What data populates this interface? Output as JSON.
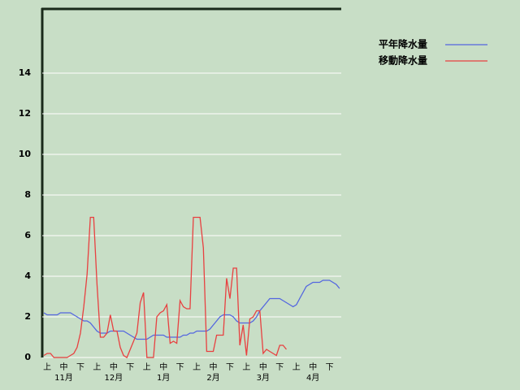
{
  "chart_data": {
    "type": "line",
    "categories": [
      null,
      "上",
      null,
      null,
      null,
      null,
      "中",
      null,
      null,
      null,
      null,
      "下",
      null,
      null,
      null,
      null,
      "上",
      null,
      null,
      null,
      null,
      "中",
      null,
      null,
      null,
      null,
      "下",
      null,
      null,
      null,
      null,
      "上",
      null,
      null,
      null,
      null,
      "中",
      null,
      null,
      null,
      null,
      "下",
      null,
      null,
      null,
      null,
      "上",
      null,
      null,
      null,
      null,
      "中",
      null,
      null,
      null,
      null,
      "下",
      null,
      null,
      null,
      null,
      "上",
      null,
      null,
      null,
      null,
      "中",
      null,
      null,
      null,
      null,
      "下",
      null,
      null,
      null,
      null,
      "上",
      null,
      null,
      null,
      null,
      "中",
      null,
      null,
      null,
      null,
      "下",
      null,
      null,
      null
    ],
    "months": [
      "11月",
      "12月",
      "1月",
      "2月",
      "3月",
      "4月"
    ],
    "series": [
      {
        "name": "平年降水量",
        "color": "#5366e0",
        "values": [
          2.2,
          2.1,
          2.1,
          2.1,
          2.1,
          2.2,
          2.2,
          2.2,
          2.2,
          2.1,
          2.0,
          1.9,
          1.8,
          1.8,
          1.7,
          1.5,
          1.3,
          1.2,
          1.2,
          1.2,
          1.3,
          1.3,
          1.3,
          1.3,
          1.3,
          1.2,
          1.1,
          1.0,
          0.9,
          0.9,
          0.9,
          0.9,
          1.0,
          1.1,
          1.1,
          1.1,
          1.1,
          1.0,
          1.0,
          1.0,
          1.0,
          1.0,
          1.1,
          1.1,
          1.2,
          1.2,
          1.3,
          1.3,
          1.3,
          1.3,
          1.4,
          1.6,
          1.8,
          2.0,
          2.1,
          2.1,
          2.1,
          2.0,
          1.8,
          1.7,
          1.7,
          1.7,
          1.7,
          1.8,
          2.0,
          2.3,
          2.5,
          2.7,
          2.9,
          2.9,
          2.9,
          2.9,
          2.8,
          2.7,
          2.6,
          2.5,
          2.6,
          2.9,
          3.2,
          3.5,
          3.6,
          3.7,
          3.7,
          3.7,
          3.8,
          3.8,
          3.8,
          3.7,
          3.6,
          3.4
        ]
      },
      {
        "name": "移動降水量",
        "color": "#e84040",
        "values": [
          0.1,
          0.2,
          0.2,
          0,
          0,
          0,
          0,
          0,
          0.1,
          0.2,
          0.5,
          1.2,
          2.5,
          4.1,
          6.9,
          6.9,
          3.6,
          1.0,
          1.0,
          1.2,
          2.1,
          1.3,
          1.3,
          0.5,
          0.1,
          0.0,
          0.4,
          0.8,
          1.2,
          2.7,
          3.2,
          0,
          0,
          0,
          2.0,
          2.2,
          2.3,
          2.6,
          0.7,
          0.8,
          0.7,
          2.8,
          2.5,
          2.4,
          2.4,
          6.9,
          6.9,
          6.9,
          5.4,
          0.3,
          0.3,
          0.3,
          1.1,
          1.1,
          1.1,
          3.9,
          2.9,
          4.4,
          4.4,
          0.6,
          1.6,
          0.1,
          1.9,
          2.0,
          2.3,
          2.3,
          0.2,
          0.4,
          0.3,
          0.2,
          0.1,
          0.6,
          0.6,
          0.4,
          null,
          null,
          null,
          null,
          null,
          null,
          null,
          null,
          null,
          null,
          null,
          null,
          null,
          null,
          null,
          null
        ]
      }
    ],
    "ylim": [
      0,
      17.2
    ],
    "yticks": [
      0,
      2,
      4,
      6,
      8,
      10,
      12,
      14
    ],
    "grid": true,
    "legend": "top-right"
  }
}
